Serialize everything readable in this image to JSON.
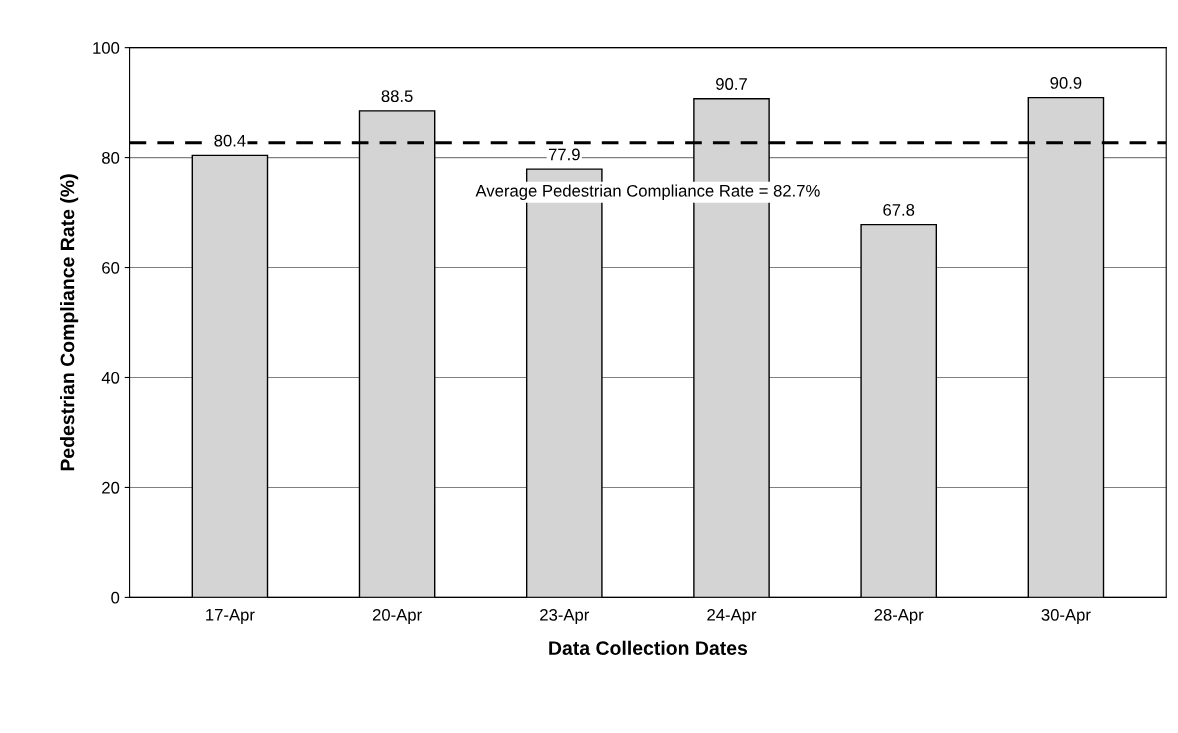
{
  "chart_data": {
    "type": "bar",
    "xlabel": "Data Collection Dates",
    "ylabel": "Pedestrian Compliance Rate (%)",
    "categories": [
      "17-Apr",
      "20-Apr",
      "23-Apr",
      "24-Apr",
      "28-Apr",
      "30-Apr"
    ],
    "values": [
      80.4,
      88.5,
      77.9,
      90.7,
      67.8,
      90.9
    ],
    "color": "#d4d4d4",
    "ylim": [
      0,
      100
    ],
    "yticks": [
      0,
      20,
      40,
      60,
      80,
      100
    ],
    "grid": "y",
    "data_labels": true,
    "ref_lines": [
      {
        "axis": "y",
        "value": 82.7,
        "label": "Average Pedestrian Compliance Rate = 82.7%",
        "color": "#000000",
        "line_style": "dashed"
      }
    ]
  }
}
